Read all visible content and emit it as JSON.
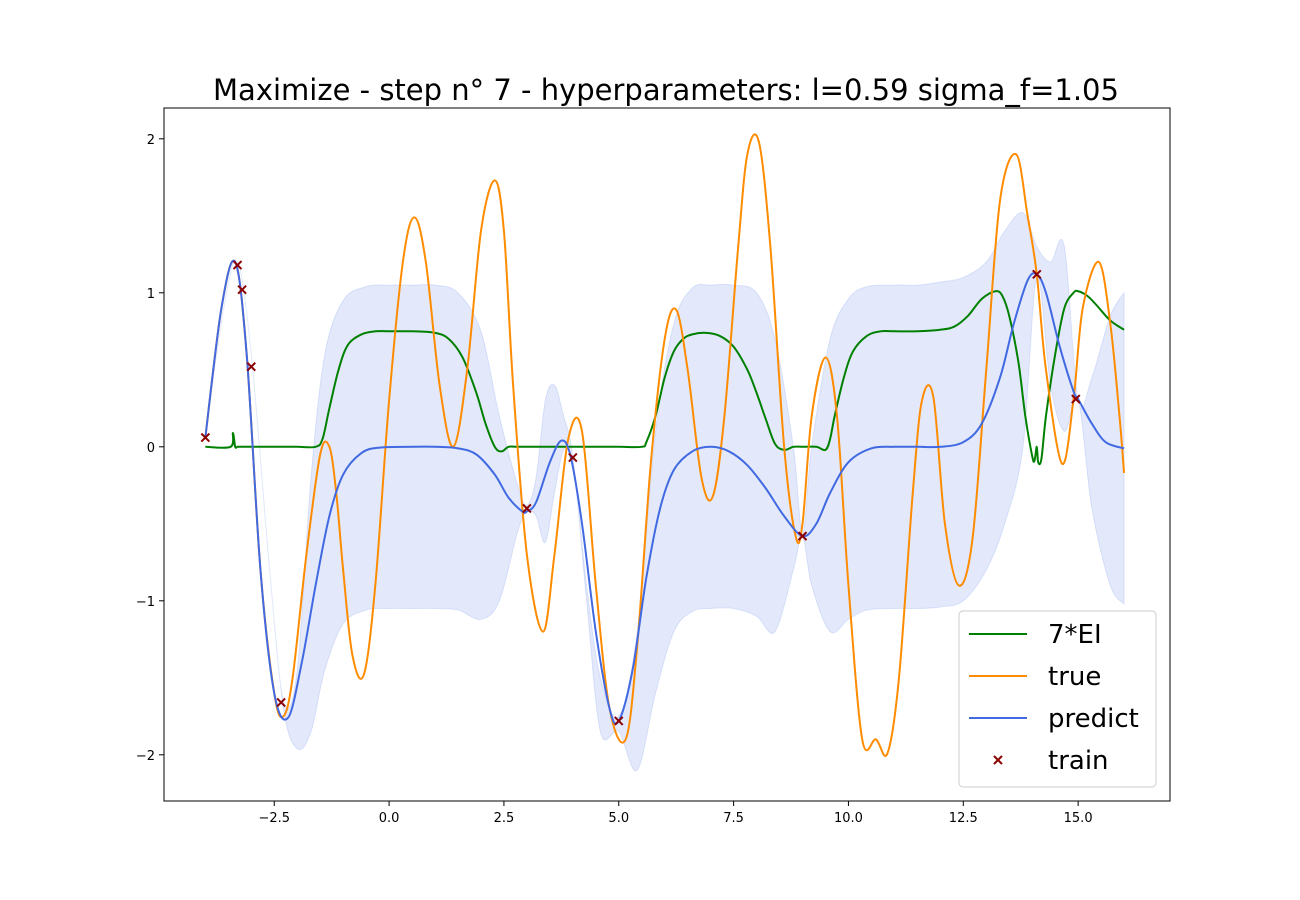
{
  "chart_data": {
    "type": "line",
    "title": "Maximize - step n° 7 - hyperparameters: l=0.59 sigma_f=1.05",
    "xlabel": "",
    "ylabel": "",
    "xlim": [
      -4.9,
      17.0
    ],
    "ylim": [
      -2.3,
      2.2
    ],
    "grid": false,
    "legend_position": "lower right",
    "x_ticks": [
      -2.5,
      0.0,
      2.5,
      5.0,
      7.5,
      10.0,
      12.5,
      15.0
    ],
    "x_tick_labels": [
      "−2.5",
      "0.0",
      "2.5",
      "5.0",
      "7.5",
      "10.0",
      "12.5",
      "15.0"
    ],
    "y_ticks": [
      -2,
      -1,
      0,
      1,
      2
    ],
    "y_tick_labels": [
      "−2",
      "−1",
      "0",
      "1",
      "2"
    ],
    "colors": {
      "ei": "#008000",
      "true": "#ff8c00",
      "predict": "#4169e1",
      "band": "#4169e1",
      "train": "#8b0000"
    },
    "band": {
      "x": [
        -4.0,
        -3.6,
        -3.3,
        -3.0,
        -2.6,
        -2.3,
        -2.0,
        -1.7,
        -1.4,
        -1.0,
        -0.5,
        0.0,
        0.5,
        1.0,
        1.5,
        2.0,
        2.4,
        2.8,
        3.0,
        3.2,
        3.4,
        3.6,
        3.8,
        4.0,
        4.3,
        4.6,
        5.0,
        5.4,
        5.8,
        6.2,
        6.6,
        7.0,
        7.5,
        8.0,
        8.4,
        8.8,
        9.0,
        9.2,
        9.6,
        10.0,
        10.4,
        11.0,
        11.5,
        12.0,
        12.5,
        13.0,
        13.4,
        13.8,
        14.1,
        14.4,
        14.7,
        15.0,
        15.3,
        15.7,
        16.0
      ],
      "upper": [
        0.06,
        0.9,
        1.2,
        0.6,
        -0.8,
        -1.65,
        -1.45,
        -0.2,
        0.6,
        0.95,
        1.04,
        1.05,
        1.05,
        1.05,
        1.0,
        0.75,
        0.2,
        -0.25,
        -0.38,
        -0.2,
        0.3,
        0.4,
        0.2,
        -0.06,
        -0.9,
        -1.5,
        -1.75,
        -1.2,
        0.1,
        0.8,
        1.03,
        1.05,
        1.05,
        1.0,
        0.7,
        0.0,
        -0.56,
        0.0,
        0.7,
        0.96,
        1.04,
        1.05,
        1.05,
        1.07,
        1.1,
        1.2,
        1.4,
        1.52,
        1.3,
        1.2,
        1.3,
        0.3,
        0.45,
        0.85,
        1.0
      ],
      "lower": [
        0.06,
        0.9,
        1.2,
        0.6,
        -0.8,
        -1.7,
        -1.96,
        -1.85,
        -1.45,
        -1.15,
        -1.06,
        -1.05,
        -1.05,
        -1.05,
        -1.06,
        -1.12,
        -1.0,
        -0.55,
        -0.42,
        -0.45,
        -0.62,
        -0.3,
        -0.02,
        -0.08,
        -1.0,
        -1.85,
        -1.85,
        -2.1,
        -1.6,
        -1.2,
        -1.07,
        -1.05,
        -1.05,
        -1.1,
        -1.2,
        -0.8,
        -0.58,
        -0.9,
        -1.2,
        -1.12,
        -1.06,
        -1.05,
        -1.05,
        -1.04,
        -1.0,
        -0.8,
        -0.5,
        0.0,
        1.1,
        0.4,
        0.1,
        0.3,
        -0.4,
        -0.9,
        -1.02
      ]
    },
    "series": [
      {
        "name": "7*EI",
        "color_key": "ei",
        "x": [
          -4.0,
          -3.45,
          -3.4,
          -3.35,
          -3.3,
          -3.2,
          -3.0,
          -2.5,
          -2.0,
          -1.6,
          -1.45,
          -1.3,
          -1.1,
          -0.9,
          -0.6,
          -0.3,
          0.0,
          0.5,
          1.0,
          1.3,
          1.6,
          1.9,
          2.1,
          2.3,
          2.45,
          2.6,
          2.8,
          3.2,
          3.6,
          4.0,
          4.5,
          5.0,
          5.5,
          5.6,
          5.8,
          6.0,
          6.2,
          6.4,
          6.6,
          6.9,
          7.2,
          7.5,
          7.8,
          8.0,
          8.2,
          8.4,
          8.6,
          8.8,
          9.0,
          9.3,
          9.5,
          9.6,
          9.7,
          9.9,
          10.1,
          10.4,
          10.7,
          11.0,
          11.5,
          12.0,
          12.3,
          12.6,
          12.9,
          13.2,
          13.35,
          13.5,
          13.7,
          13.85,
          14.0,
          14.05,
          14.1,
          14.13,
          14.2,
          14.3,
          14.5,
          14.7,
          14.9,
          15.0,
          15.2,
          15.4,
          15.7,
          16.0
        ],
        "y": [
          0.0,
          0.0,
          0.09,
          0.0,
          0.0,
          0.0,
          0.0,
          0.0,
          0.0,
          0.0,
          0.05,
          0.25,
          0.5,
          0.66,
          0.73,
          0.75,
          0.75,
          0.75,
          0.74,
          0.7,
          0.58,
          0.35,
          0.15,
          0.0,
          -0.03,
          0.0,
          0.0,
          0.0,
          0.0,
          0.0,
          0.0,
          0.0,
          0.0,
          0.03,
          0.2,
          0.45,
          0.62,
          0.7,
          0.73,
          0.74,
          0.72,
          0.65,
          0.5,
          0.35,
          0.18,
          0.02,
          -0.02,
          0.0,
          0.0,
          0.0,
          -0.02,
          0.05,
          0.2,
          0.45,
          0.62,
          0.72,
          0.75,
          0.75,
          0.75,
          0.76,
          0.78,
          0.85,
          0.96,
          1.01,
          0.98,
          0.85,
          0.55,
          0.2,
          -0.06,
          -0.09,
          0.0,
          -0.1,
          -0.08,
          0.2,
          0.6,
          0.9,
          1.0,
          1.01,
          0.98,
          0.92,
          0.82,
          0.76
        ]
      },
      {
        "name": "true",
        "color_key": "true",
        "x": [
          -4.0,
          -3.65,
          -3.35,
          -3.1,
          -2.8,
          -2.5,
          -2.3,
          -2.1,
          -1.8,
          -1.5,
          -1.3,
          -1.15,
          -1.0,
          -0.8,
          -0.55,
          -0.3,
          0.0,
          0.3,
          0.55,
          0.8,
          1.1,
          1.4,
          1.7,
          2.0,
          2.3,
          2.5,
          2.7,
          3.0,
          3.35,
          3.6,
          3.9,
          4.2,
          4.5,
          4.8,
          5.15,
          5.4,
          5.7,
          6.0,
          6.25,
          6.5,
          6.8,
          7.05,
          7.3,
          7.6,
          7.8,
          8.05,
          8.3,
          8.6,
          8.85,
          9.0,
          9.2,
          9.5,
          9.75,
          10.0,
          10.3,
          10.6,
          10.85,
          11.1,
          11.4,
          11.6,
          11.85,
          12.1,
          12.4,
          12.7,
          13.0,
          13.3,
          13.65,
          13.9,
          14.1,
          14.3,
          14.65,
          14.9,
          15.1,
          15.45,
          15.7,
          15.9,
          16.0
        ],
        "y": [
          0.06,
          0.9,
          1.2,
          0.6,
          -0.8,
          -1.6,
          -1.75,
          -1.5,
          -0.7,
          -0.05,
          0.0,
          -0.3,
          -0.8,
          -1.35,
          -1.48,
          -0.9,
          0.3,
          1.2,
          1.49,
          1.2,
          0.4,
          0.0,
          0.5,
          1.4,
          1.73,
          1.4,
          0.4,
          -0.7,
          -1.2,
          -0.7,
          0.05,
          0.1,
          -0.9,
          -1.7,
          -1.9,
          -1.3,
          -0.1,
          0.7,
          0.89,
          0.5,
          -0.2,
          -0.32,
          0.2,
          1.3,
          1.9,
          1.98,
          1.3,
          0.0,
          -0.58,
          -0.5,
          0.2,
          0.58,
          0.2,
          -0.9,
          -1.9,
          -1.9,
          -1.99,
          -1.5,
          -0.3,
          0.3,
          0.32,
          -0.5,
          -0.9,
          -0.6,
          0.5,
          1.6,
          1.9,
          1.5,
          1.12,
          0.5,
          -0.11,
          0.31,
          0.9,
          1.2,
          0.8,
          0.2,
          -0.17
        ]
      },
      {
        "name": "predict",
        "color_key": "predict",
        "x": [
          -4.0,
          -3.65,
          -3.35,
          -3.1,
          -2.8,
          -2.5,
          -2.2,
          -1.9,
          -1.6,
          -1.3,
          -1.0,
          -0.6,
          -0.2,
          0.5,
          1.0,
          1.5,
          1.9,
          2.3,
          2.6,
          2.9,
          3.0,
          3.2,
          3.5,
          3.75,
          3.95,
          4.2,
          4.5,
          4.8,
          5.0,
          5.3,
          5.6,
          5.9,
          6.2,
          6.6,
          7.0,
          7.4,
          7.8,
          8.2,
          8.6,
          9.0,
          9.3,
          9.6,
          10.0,
          10.5,
          11.0,
          11.5,
          12.0,
          12.5,
          12.9,
          13.3,
          13.6,
          13.9,
          14.1,
          14.3,
          14.6,
          14.9,
          15.0,
          15.3,
          15.6,
          16.0
        ],
        "y": [
          0.06,
          0.9,
          1.2,
          0.6,
          -0.8,
          -1.6,
          -1.76,
          -1.4,
          -0.9,
          -0.45,
          -0.18,
          -0.04,
          -0.005,
          0.0,
          0.0,
          -0.01,
          -0.05,
          -0.18,
          -0.33,
          -0.42,
          -0.42,
          -0.36,
          -0.1,
          0.04,
          -0.06,
          -0.5,
          -1.2,
          -1.7,
          -1.78,
          -1.45,
          -0.85,
          -0.4,
          -0.15,
          -0.03,
          0.0,
          -0.03,
          -0.12,
          -0.27,
          -0.45,
          -0.58,
          -0.5,
          -0.3,
          -0.1,
          -0.01,
          0.0,
          0.0,
          0.0,
          0.03,
          0.15,
          0.45,
          0.8,
          1.08,
          1.12,
          1.0,
          0.65,
          0.36,
          0.31,
          0.15,
          0.03,
          -0.01
        ]
      }
    ],
    "train": {
      "name": "train",
      "x": [
        -4.0,
        -3.3,
        -3.2,
        -3.0,
        -2.35,
        3.0,
        4.0,
        5.0,
        9.0,
        14.1,
        14.95
      ],
      "y": [
        0.06,
        1.18,
        1.02,
        0.52,
        -1.66,
        -0.4,
        -0.07,
        -1.78,
        -0.58,
        1.12,
        0.31
      ]
    }
  }
}
